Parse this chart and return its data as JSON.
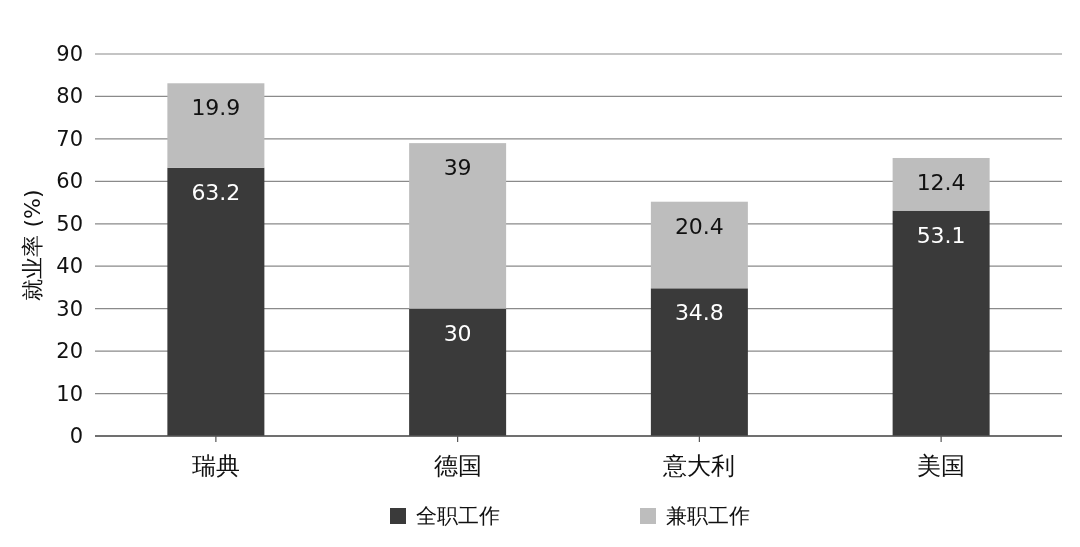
{
  "chart_data": {
    "type": "bar",
    "stacked": true,
    "ylabel": "就业率 (%)",
    "categories": [
      "瑞典",
      "德国",
      "意大利",
      "美国"
    ],
    "series": [
      {
        "name": "全职工作",
        "color": "#3a3a3a",
        "values": [
          63.2,
          30,
          34.8,
          53.1
        ]
      },
      {
        "name": "兼职工作",
        "color": "#bdbdbd",
        "values": [
          19.9,
          39,
          20.4,
          12.4
        ]
      }
    ],
    "ylim": [
      0,
      90
    ],
    "yticks": [
      0,
      10,
      20,
      30,
      40,
      50,
      60,
      70,
      80,
      90
    ],
    "grid": "y",
    "legend": "bottom",
    "data_labels": true
  }
}
